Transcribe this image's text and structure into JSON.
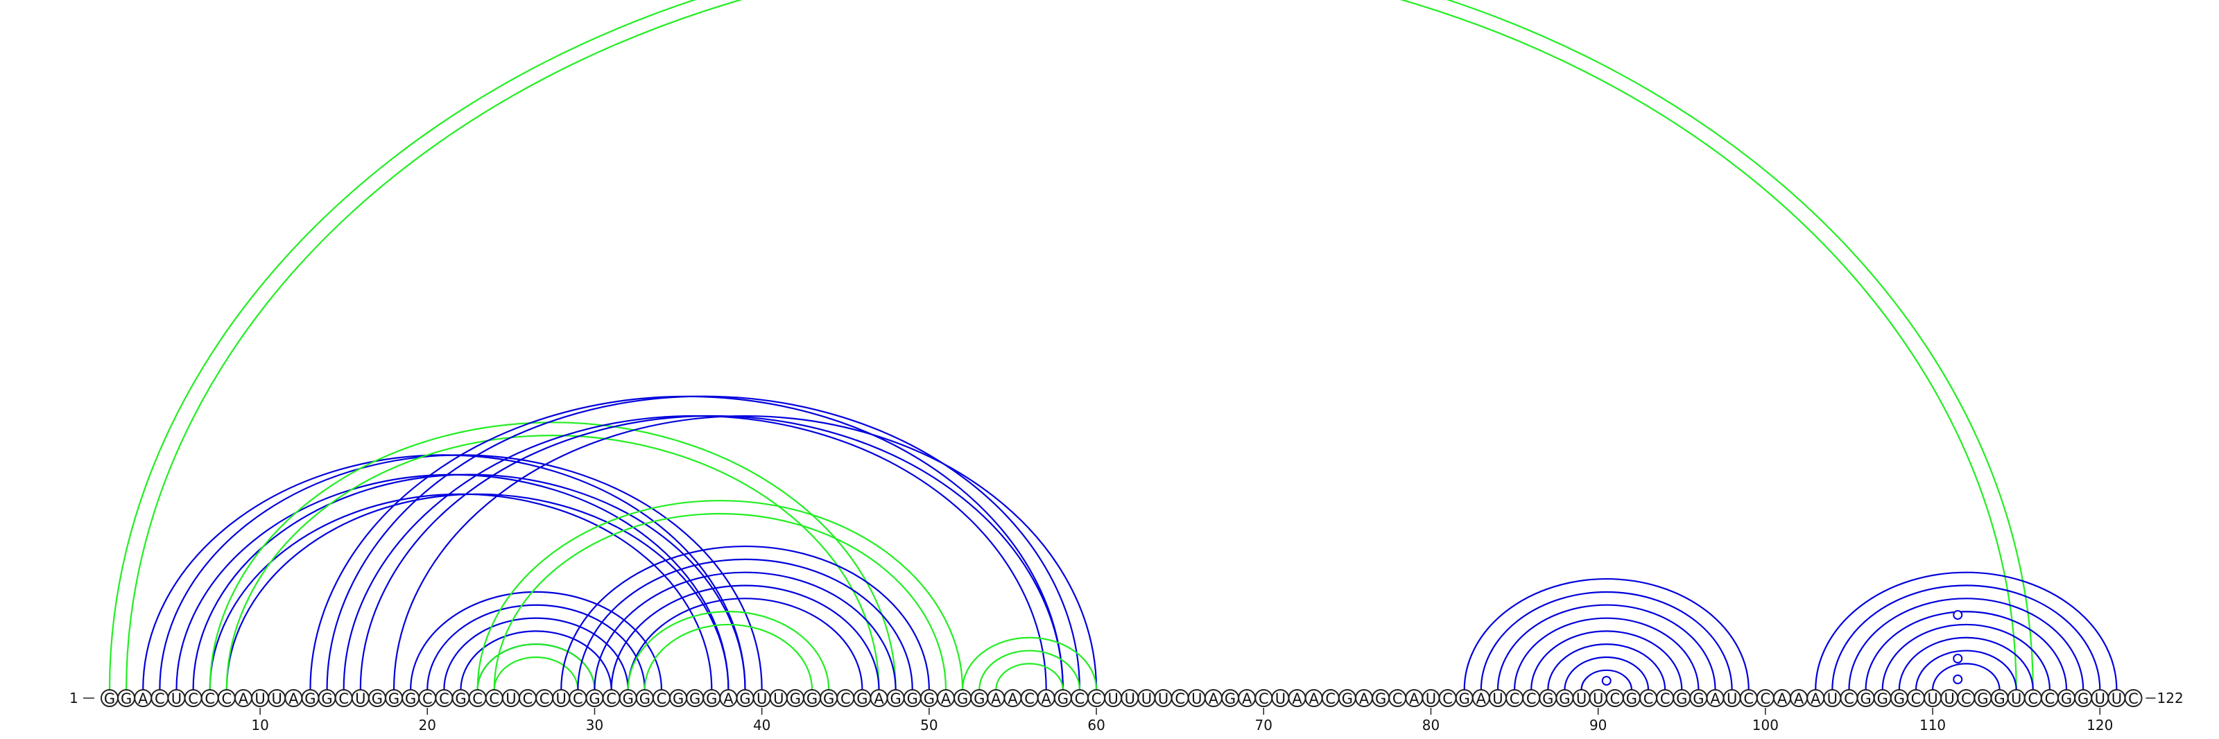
{
  "sequence": "GGACUCCCAUUAGGCUGGGCCGCCUCCUCGCGGCGGGAGUUGGGCGAGGGAGGAACAGCCUUUUCUAGACUAACGAGCAUCGAUCCGGUUCGCCGGAUCCAAAUCGGGCUUCGGUCCGGUUC",
  "start_label": "1",
  "end_label": "122",
  "tick_labels": [
    "10",
    "20",
    "30",
    "40",
    "50",
    "60",
    "70",
    "80",
    "90",
    "100",
    "110",
    "120"
  ],
  "tick_positions": [
    10,
    20,
    30,
    40,
    50,
    60,
    70,
    80,
    90,
    100,
    110,
    120
  ],
  "colors": {
    "pair_blue": "#0000dd",
    "pair_green": "#22ee22",
    "outline": "#222222"
  },
  "loop_markers": [
    90,
    111,
    111,
    111
  ],
  "arcs": [
    {
      "i": 1,
      "j": 116,
      "color": "green"
    },
    {
      "i": 2,
      "j": 115,
      "color": "green"
    },
    {
      "i": 3,
      "j": 39,
      "color": "blue"
    },
    {
      "i": 4,
      "j": 40,
      "color": "blue"
    },
    {
      "i": 5,
      "j": 38,
      "color": "blue"
    },
    {
      "i": 6,
      "j": 39,
      "color": "blue"
    },
    {
      "i": 7,
      "j": 37,
      "color": "blue"
    },
    {
      "i": 8,
      "j": 38,
      "color": "blue"
    },
    {
      "i": 7,
      "j": 48,
      "color": "green"
    },
    {
      "i": 8,
      "j": 47,
      "color": "green"
    },
    {
      "i": 13,
      "j": 58,
      "color": "blue"
    },
    {
      "i": 14,
      "j": 59,
      "color": "blue"
    },
    {
      "i": 15,
      "j": 57,
      "color": "blue"
    },
    {
      "i": 16,
      "j": 58,
      "color": "blue"
    },
    {
      "i": 18,
      "j": 60,
      "color": "blue"
    },
    {
      "i": 19,
      "j": 34,
      "color": "blue"
    },
    {
      "i": 20,
      "j": 33,
      "color": "blue"
    },
    {
      "i": 21,
      "j": 32,
      "color": "blue"
    },
    {
      "i": 22,
      "j": 31,
      "color": "blue"
    },
    {
      "i": 23,
      "j": 30,
      "color": "blue"
    },
    {
      "i": 23,
      "j": 52,
      "color": "green"
    },
    {
      "i": 24,
      "j": 51,
      "color": "green"
    },
    {
      "i": 23,
      "j": 30,
      "color": "green"
    },
    {
      "i": 24,
      "j": 29,
      "color": "green"
    },
    {
      "i": 28,
      "j": 50,
      "color": "blue"
    },
    {
      "i": 29,
      "j": 49,
      "color": "blue"
    },
    {
      "i": 30,
      "j": 48,
      "color": "blue"
    },
    {
      "i": 31,
      "j": 47,
      "color": "blue"
    },
    {
      "i": 32,
      "j": 46,
      "color": "blue"
    },
    {
      "i": 32,
      "j": 44,
      "color": "green"
    },
    {
      "i": 33,
      "j": 43,
      "color": "green"
    },
    {
      "i": 52,
      "j": 60,
      "color": "green"
    },
    {
      "i": 53,
      "j": 59,
      "color": "green"
    },
    {
      "i": 54,
      "j": 58,
      "color": "green"
    },
    {
      "i": 82,
      "j": 99,
      "color": "blue"
    },
    {
      "i": 83,
      "j": 98,
      "color": "blue"
    },
    {
      "i": 84,
      "j": 97,
      "color": "blue"
    },
    {
      "i": 85,
      "j": 96,
      "color": "blue"
    },
    {
      "i": 86,
      "j": 95,
      "color": "blue"
    },
    {
      "i": 87,
      "j": 94,
      "color": "blue"
    },
    {
      "i": 88,
      "j": 93,
      "color": "blue"
    },
    {
      "i": 89,
      "j": 92,
      "color": "blue"
    },
    {
      "i": 103,
      "j": 121,
      "color": "blue"
    },
    {
      "i": 104,
      "j": 120,
      "color": "blue"
    },
    {
      "i": 105,
      "j": 119,
      "color": "blue"
    },
    {
      "i": 106,
      "j": 118,
      "color": "blue"
    },
    {
      "i": 107,
      "j": 117,
      "color": "blue"
    },
    {
      "i": 108,
      "j": 116,
      "color": "blue"
    },
    {
      "i": 109,
      "j": 115,
      "color": "blue"
    },
    {
      "i": 110,
      "j": 114,
      "color": "blue"
    }
  ]
}
